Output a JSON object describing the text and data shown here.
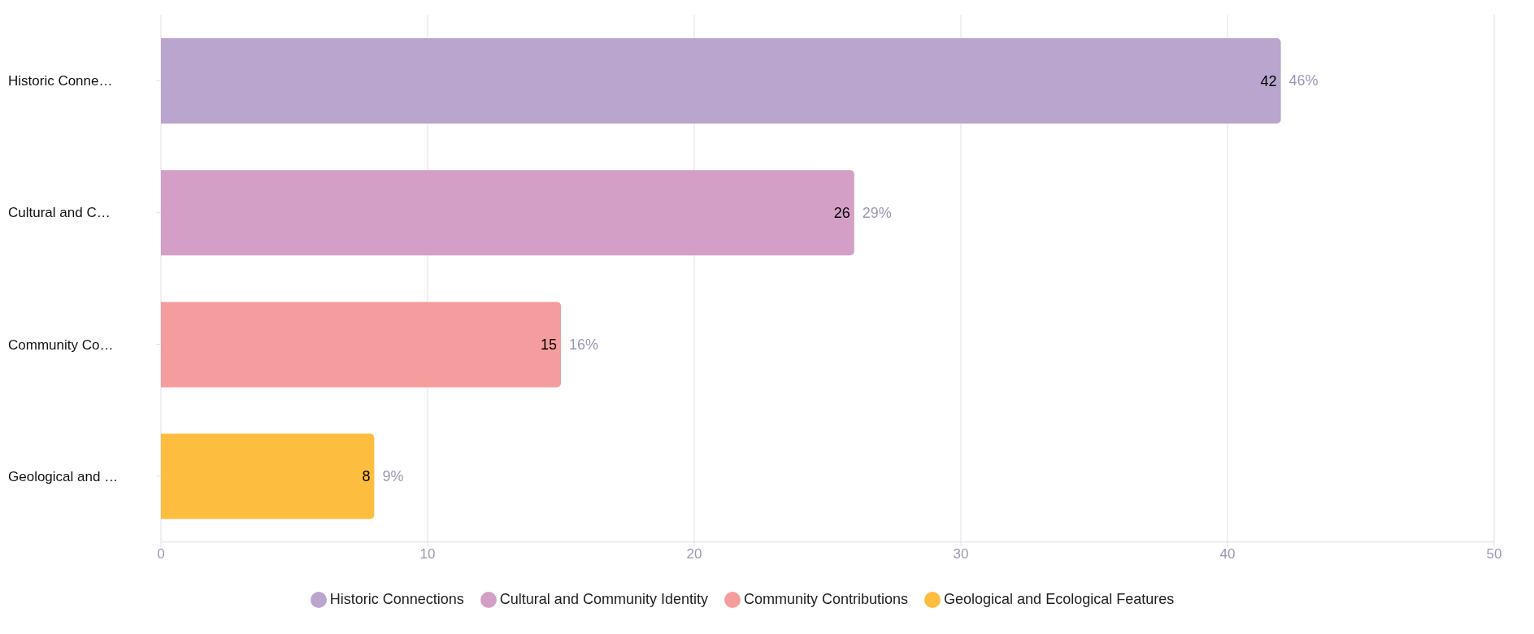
{
  "chart_data": {
    "type": "bar",
    "orientation": "horizontal",
    "stacked": true,
    "categories": [
      "Historic Conne…",
      "Cultural and C…",
      "Community Co…",
      "Geological and …"
    ],
    "series": [
      {
        "name": "Historic Connections",
        "color": "#b9a5ce",
        "values": [
          42,
          null,
          null,
          null
        ]
      },
      {
        "name": "Cultural and Community Identity",
        "color": "#d49fc6",
        "values": [
          null,
          26,
          null,
          null
        ]
      },
      {
        "name": "Community Contributions",
        "color": "#f59d9e",
        "values": [
          null,
          null,
          15,
          null
        ]
      },
      {
        "name": "Geological and Ecological Features",
        "color": "#fdbd3e",
        "values": [
          null,
          null,
          null,
          8
        ]
      }
    ],
    "annotations": [
      {
        "text": "46%",
        "x": 42,
        "y": "Historic Conne…"
      },
      {
        "text": "29%",
        "x": 26,
        "y": "Cultural and C…"
      },
      {
        "text": "16%",
        "x": 15,
        "y": "Community Co…"
      },
      {
        "text": "9%",
        "x": 8,
        "y": "Geological and …"
      }
    ],
    "xlim": [
      0,
      50
    ],
    "xticks": [
      0,
      10,
      20,
      30,
      40,
      50
    ],
    "grid": "x",
    "data_labels": true,
    "legend": "bottom"
  }
}
